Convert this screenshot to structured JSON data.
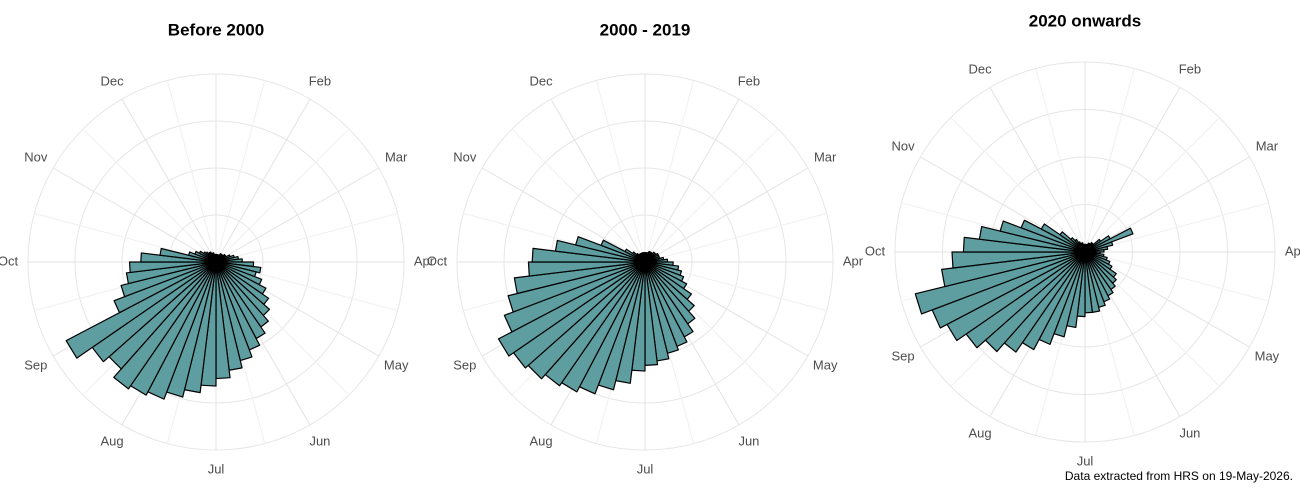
{
  "chart_data": [
    {
      "type": "rose",
      "title": "Before 2000",
      "color": "#5f9ea0",
      "grid": true,
      "xlim": [
        0,
        52
      ],
      "ylim": [
        0,
        100
      ],
      "xticks": [
        {
          "value": 4.33,
          "label": "Feb"
        },
        {
          "value": 8.67,
          "label": "Mar"
        },
        {
          "value": 13,
          "label": "Apr"
        },
        {
          "value": 17.33,
          "label": "May"
        },
        {
          "value": 21.67,
          "label": "Jun"
        },
        {
          "value": 26,
          "label": "Jul"
        },
        {
          "value": 30.33,
          "label": "Aug"
        },
        {
          "value": 34.67,
          "label": "Sep"
        },
        {
          "value": 39,
          "label": "Oct"
        },
        {
          "value": 43.33,
          "label": "Nov"
        },
        {
          "value": 47.67,
          "label": "Dec"
        }
      ],
      "values": [
        4,
        4,
        3,
        4,
        5,
        5,
        5,
        6,
        6,
        8,
        10,
        12,
        14,
        20,
        24,
        22,
        26,
        30,
        34,
        38,
        42,
        46,
        50,
        54,
        58,
        62,
        66,
        70,
        74,
        78,
        80,
        82,
        76,
        80,
        90,
        58,
        52,
        48,
        46,
        40,
        30,
        15,
        12,
        10,
        8,
        7,
        6,
        6,
        5,
        5,
        4,
        4
      ]
    },
    {
      "type": "rose",
      "title": "2000 - 2019",
      "color": "#5f9ea0",
      "grid": true,
      "xlim": [
        0,
        52
      ],
      "ylim": [
        0,
        100
      ],
      "xticks": [
        {
          "value": 4.33,
          "label": "Feb"
        },
        {
          "value": 8.67,
          "label": "Mar"
        },
        {
          "value": 13,
          "label": "Apr"
        },
        {
          "value": 17.33,
          "label": "May"
        },
        {
          "value": 21.67,
          "label": "Jun"
        },
        {
          "value": 26,
          "label": "Jul"
        },
        {
          "value": 30.33,
          "label": "Aug"
        },
        {
          "value": 34.67,
          "label": "Sep"
        },
        {
          "value": 39,
          "label": "Oct"
        },
        {
          "value": 43.33,
          "label": "Nov"
        },
        {
          "value": 47.67,
          "label": "Dec"
        }
      ],
      "values": [
        5,
        5,
        5,
        6,
        6,
        6,
        7,
        7,
        8,
        8,
        8,
        10,
        12,
        15,
        18,
        20,
        22,
        25,
        30,
        35,
        40,
        45,
        48,
        50,
        53,
        55,
        58,
        65,
        70,
        75,
        78,
        80,
        83,
        85,
        88,
        80,
        75,
        70,
        62,
        60,
        48,
        38,
        25,
        12,
        8,
        6,
        5,
        5,
        5,
        5,
        5,
        5
      ]
    },
    {
      "type": "rose",
      "title": "2020 onwards",
      "color": "#5f9ea0",
      "grid": true,
      "xlim": [
        0,
        52
      ],
      "ylim": [
        0,
        100
      ],
      "xticks": [
        {
          "value": 4.33,
          "label": "Feb"
        },
        {
          "value": 8.67,
          "label": "Mar"
        },
        {
          "value": 13,
          "label": "Apr"
        },
        {
          "value": 17.33,
          "label": "May"
        },
        {
          "value": 21.67,
          "label": "Jun"
        },
        {
          "value": 26,
          "label": "Jul"
        },
        {
          "value": 30.33,
          "label": "Aug"
        },
        {
          "value": 34.67,
          "label": "Sep"
        },
        {
          "value": 39,
          "label": "Oct"
        },
        {
          "value": 43.33,
          "label": "Nov"
        },
        {
          "value": 47.67,
          "label": "Dec"
        }
      ],
      "values": [
        4,
        4,
        4,
        5,
        5,
        6,
        6,
        10,
        15,
        27,
        15,
        12,
        10,
        8,
        10,
        12,
        14,
        16,
        20,
        22,
        24,
        26,
        28,
        30,
        32,
        32,
        34,
        40,
        46,
        52,
        58,
        64,
        70,
        76,
        82,
        86,
        92,
        76,
        70,
        64,
        56,
        46,
        36,
        26,
        16,
        10,
        8,
        6,
        5,
        5,
        4,
        4
      ]
    }
  ],
  "caption": "Data extracted from HRS on 19-May-2026."
}
